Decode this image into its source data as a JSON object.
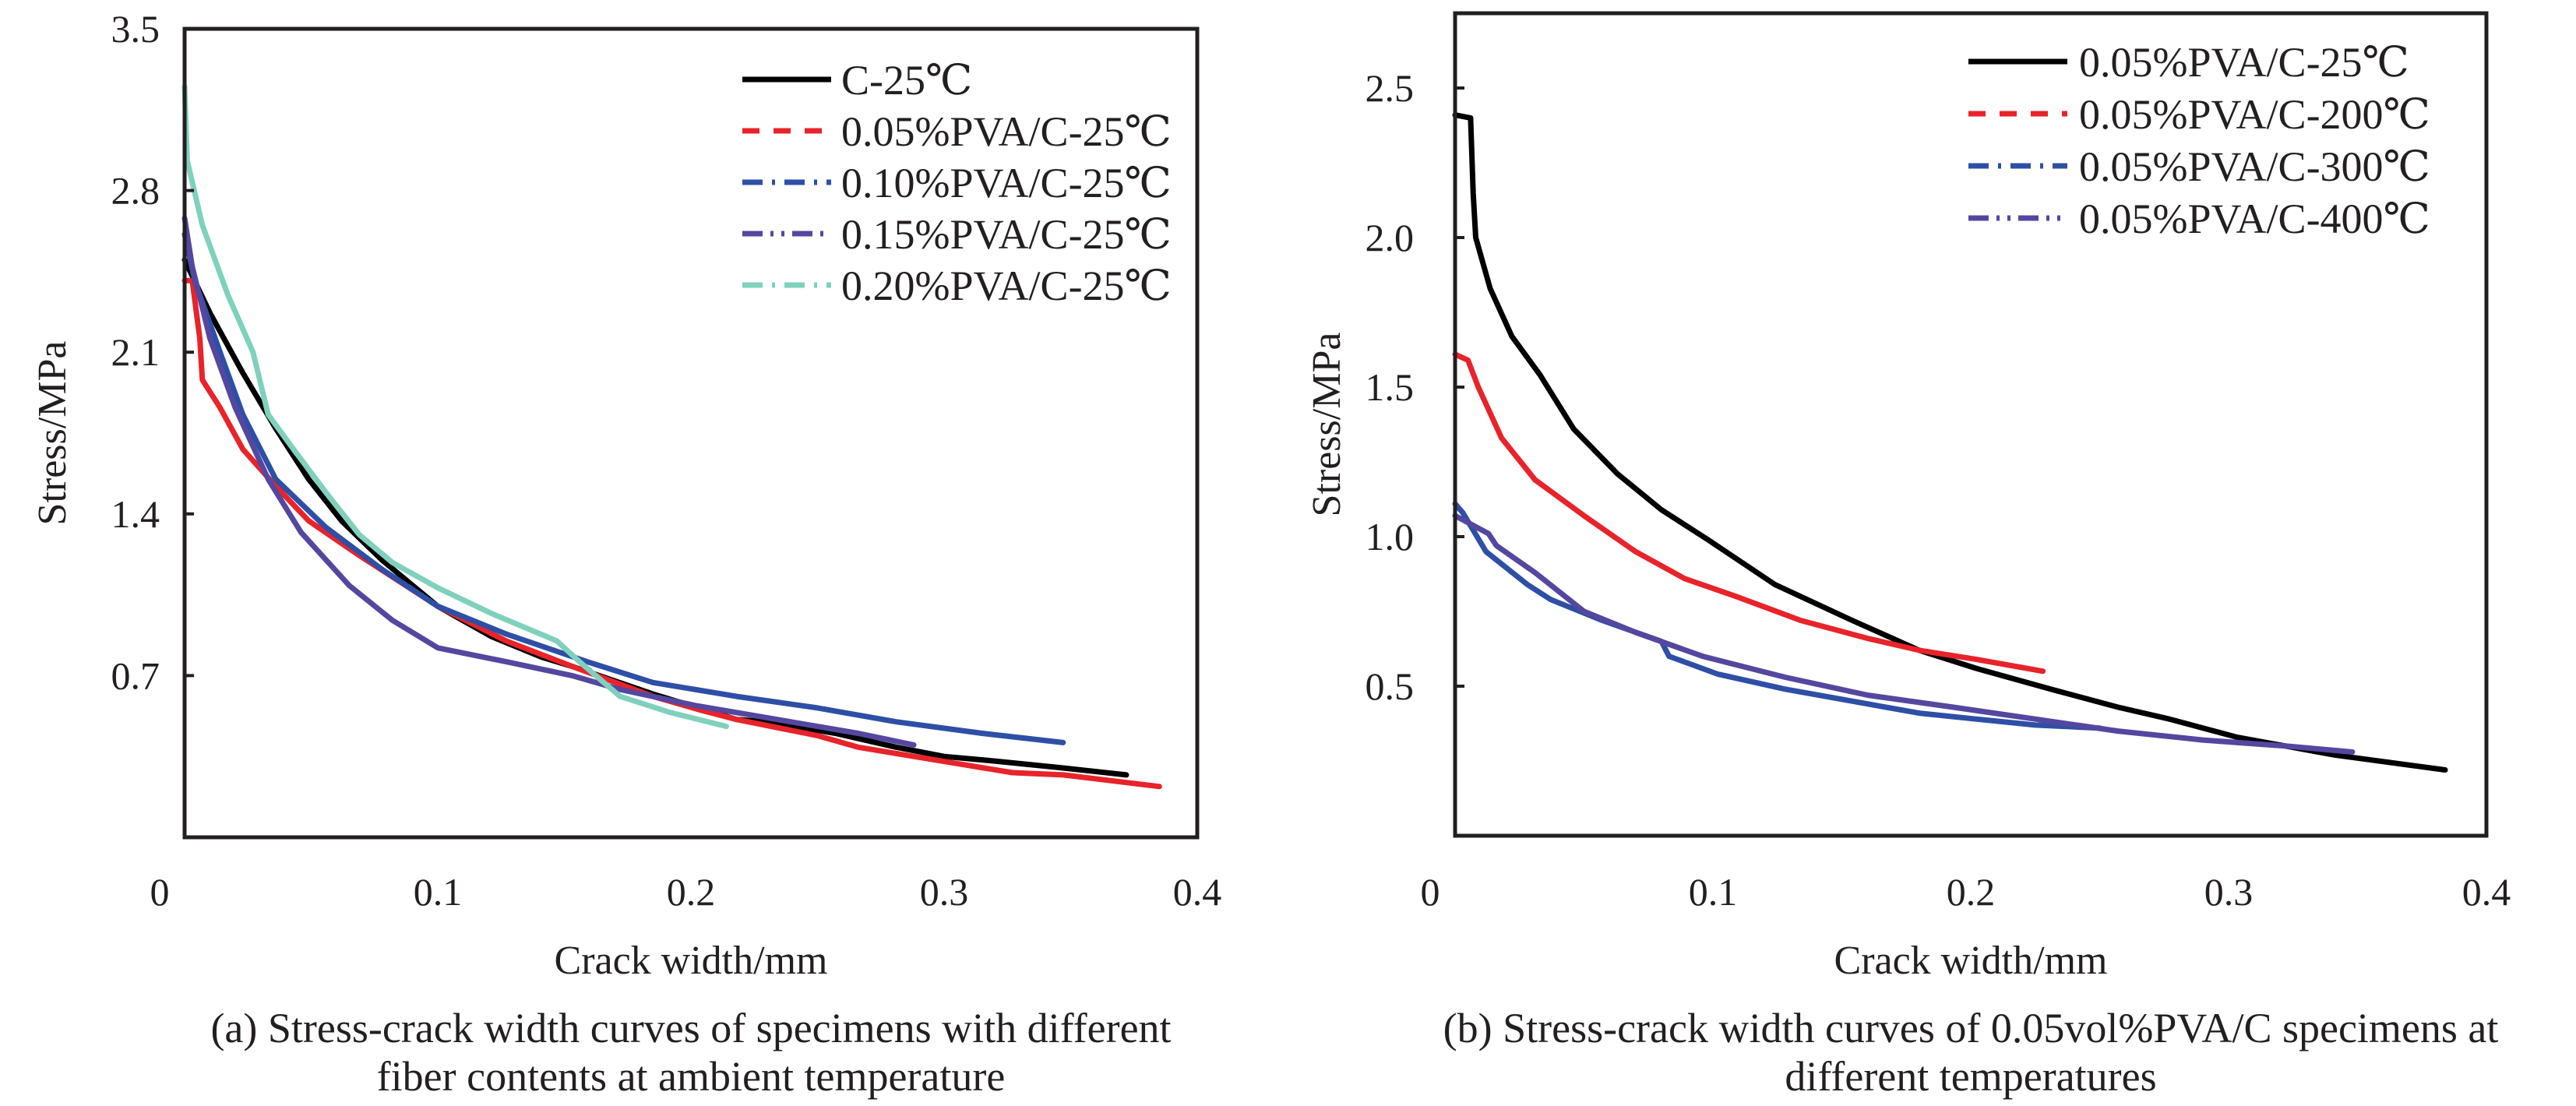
{
  "chart_data": [
    {
      "id": "a",
      "type": "line",
      "title": "",
      "caption": [
        "(a) Stress-crack width curves of specimens with different",
        "fiber contents at ambient temperature"
      ],
      "xlabel": "Crack width/mm",
      "ylabel": "Stress/MPa",
      "xlim": [
        0,
        0.4
      ],
      "ylim": [
        0,
        3.5
      ],
      "xticks": [
        0,
        0.1,
        0.2,
        0.3,
        0.4
      ],
      "xtick_labels": [
        "0",
        "0.1",
        "0.2",
        "0.3",
        "0.4"
      ],
      "yticks": [
        0.7,
        1.4,
        2.1,
        2.8,
        3.5
      ],
      "ytick_labels": [
        "0.7",
        "1.4",
        "2.1",
        "2.8",
        "3.5"
      ],
      "grid": false,
      "legend_position": "top-right",
      "series": [
        {
          "name": "C-25℃",
          "color": "#000000",
          "dash": "solid",
          "points": [
            [
              0,
              2.5
            ],
            [
              0.01,
              2.27
            ],
            [
              0.023,
              2.01
            ],
            [
              0.036,
              1.77
            ],
            [
              0.049,
              1.55
            ],
            [
              0.062,
              1.37
            ],
            [
              0.078,
              1.2
            ],
            [
              0.1,
              1.0
            ],
            [
              0.121,
              0.87
            ],
            [
              0.141,
              0.78
            ],
            [
              0.153,
              0.74
            ],
            [
              0.185,
              0.62
            ],
            [
              0.218,
              0.51
            ],
            [
              0.23,
              0.5
            ],
            [
              0.257,
              0.45
            ],
            [
              0.281,
              0.39
            ],
            [
              0.3,
              0.35
            ],
            [
              0.32,
              0.33
            ],
            [
              0.347,
              0.3
            ],
            [
              0.372,
              0.27
            ]
          ]
        },
        {
          "name": "0.05%PVA/C-25℃",
          "color": "#e8232a",
          "dash": "dash",
          "points": [
            [
              0,
              2.41
            ],
            [
              0.003,
              2.41
            ],
            [
              0.006,
              2.16
            ],
            [
              0.007,
              1.98
            ],
            [
              0.014,
              1.86
            ],
            [
              0.023,
              1.68
            ],
            [
              0.036,
              1.52
            ],
            [
              0.049,
              1.37
            ],
            [
              0.069,
              1.22
            ],
            [
              0.1,
              1.0
            ],
            [
              0.127,
              0.85
            ],
            [
              0.153,
              0.74
            ],
            [
              0.185,
              0.61
            ],
            [
              0.204,
              0.55
            ],
            [
              0.218,
              0.51
            ],
            [
              0.25,
              0.44
            ],
            [
              0.266,
              0.39
            ],
            [
              0.299,
              0.33
            ],
            [
              0.327,
              0.28
            ],
            [
              0.347,
              0.27
            ],
            [
              0.385,
              0.22
            ]
          ]
        },
        {
          "name": "0.10%PVA/C-25℃",
          "color": "#2e4fa6",
          "dash": "dashdot",
          "points": [
            [
              0,
              2.61
            ],
            [
              0.004,
              2.41
            ],
            [
              0.014,
              2.1
            ],
            [
              0.023,
              1.83
            ],
            [
              0.036,
              1.55
            ],
            [
              0.056,
              1.34
            ],
            [
              0.078,
              1.16
            ],
            [
              0.1,
              1.0
            ],
            [
              0.127,
              0.88
            ],
            [
              0.159,
              0.76
            ],
            [
              0.185,
              0.67
            ],
            [
              0.218,
              0.61
            ],
            [
              0.25,
              0.56
            ],
            [
              0.281,
              0.5
            ],
            [
              0.315,
              0.45
            ],
            [
              0.347,
              0.41
            ]
          ]
        },
        {
          "name": "0.15%PVA/C-25℃",
          "color": "#5447a0",
          "dash": "dashdotdot",
          "points": [
            [
              0,
              2.68
            ],
            [
              0.003,
              2.47
            ],
            [
              0.01,
              2.16
            ],
            [
              0.02,
              1.86
            ],
            [
              0.033,
              1.55
            ],
            [
              0.046,
              1.32
            ],
            [
              0.065,
              1.09
            ],
            [
              0.082,
              0.94
            ],
            [
              0.1,
              0.82
            ],
            [
              0.127,
              0.76
            ],
            [
              0.153,
              0.7
            ],
            [
              0.172,
              0.64
            ],
            [
              0.202,
              0.57
            ],
            [
              0.234,
              0.51
            ],
            [
              0.266,
              0.45
            ],
            [
              0.288,
              0.4
            ]
          ]
        },
        {
          "name": "0.20%PVA/C-25℃",
          "color": "#7fd1bd",
          "dash": "dashdot",
          "points": [
            [
              0,
              3.25
            ],
            [
              0.001,
              2.93
            ],
            [
              0.007,
              2.65
            ],
            [
              0.017,
              2.35
            ],
            [
              0.027,
              2.1
            ],
            [
              0.033,
              1.83
            ],
            [
              0.043,
              1.68
            ],
            [
              0.056,
              1.49
            ],
            [
              0.069,
              1.31
            ],
            [
              0.082,
              1.19
            ],
            [
              0.1,
              1.08
            ],
            [
              0.121,
              0.97
            ],
            [
              0.147,
              0.85
            ],
            [
              0.156,
              0.76
            ],
            [
              0.172,
              0.61
            ],
            [
              0.192,
              0.54
            ],
            [
              0.214,
              0.48
            ]
          ]
        }
      ]
    },
    {
      "id": "b",
      "type": "line",
      "title": "",
      "caption": [
        "(b) Stress-crack width curves of 0.05vol%PVA/C specimens at",
        "different temperatures"
      ],
      "xlabel": "Crack width/mm",
      "ylabel": "Stress/MPa",
      "xlim": [
        0,
        0.4
      ],
      "ylim": [
        0,
        2.75
      ],
      "xticks": [
        0,
        0.1,
        0.2,
        0.3,
        0.4
      ],
      "xtick_labels": [
        "0",
        "0.1",
        "0.2",
        "0.3",
        "0.4"
      ],
      "yticks": [
        0.5,
        1.0,
        1.5,
        2.0,
        2.5
      ],
      "ytick_labels": [
        "0.5",
        "1.0",
        "1.5",
        "2.0",
        "2.5"
      ],
      "grid": false,
      "legend_position": "top-right",
      "series": [
        {
          "name": "0.05%PVA/C-25℃",
          "color": "#000000",
          "dash": "solid",
          "points": [
            [
              0,
              2.41
            ],
            [
              0.006,
              2.4
            ],
            [
              0.007,
              2.15
            ],
            [
              0.008,
              2.0
            ],
            [
              0.0136,
              1.83
            ],
            [
              0.022,
              1.67
            ],
            [
              0.033,
              1.54
            ],
            [
              0.046,
              1.36
            ],
            [
              0.063,
              1.21
            ],
            [
              0.08,
              1.09
            ],
            [
              0.098,
              0.99
            ],
            [
              0.124,
              0.84
            ],
            [
              0.154,
              0.72
            ],
            [
              0.18,
              0.62
            ],
            [
              0.202,
              0.56
            ],
            [
              0.231,
              0.49
            ],
            [
              0.257,
              0.43
            ],
            [
              0.277,
              0.39
            ],
            [
              0.303,
              0.33
            ],
            [
              0.341,
              0.27
            ],
            [
              0.384,
              0.22
            ]
          ]
        },
        {
          "name": "0.05%PVA/C-200℃",
          "color": "#e8232a",
          "dash": "dash",
          "points": [
            [
              0,
              1.61
            ],
            [
              0.005,
              1.59
            ],
            [
              0.009,
              1.5
            ],
            [
              0.018,
              1.33
            ],
            [
              0.031,
              1.19
            ],
            [
              0.05,
              1.07
            ],
            [
              0.07,
              0.95
            ],
            [
              0.089,
              0.86
            ],
            [
              0.109,
              0.8
            ],
            [
              0.134,
              0.72
            ],
            [
              0.16,
              0.66
            ],
            [
              0.18,
              0.62
            ],
            [
              0.202,
              0.59
            ],
            [
              0.228,
              0.55
            ]
          ]
        },
        {
          "name": "0.05%PVA/C-300℃",
          "color": "#2e4fa6",
          "dash": "dashdot",
          "points": [
            [
              0,
              1.11
            ],
            [
              0.003,
              1.08
            ],
            [
              0.012,
              0.95
            ],
            [
              0.028,
              0.84
            ],
            [
              0.037,
              0.79
            ],
            [
              0.057,
              0.72
            ],
            [
              0.08,
              0.65
            ],
            [
              0.083,
              0.6
            ],
            [
              0.102,
              0.54
            ],
            [
              0.128,
              0.49
            ],
            [
              0.154,
              0.45
            ],
            [
              0.18,
              0.41
            ],
            [
              0.202,
              0.39
            ],
            [
              0.225,
              0.37
            ],
            [
              0.25,
              0.36
            ]
          ]
        },
        {
          "name": "0.05%PVA/C-400℃",
          "color": "#5447a0",
          "dash": "dashdotdot",
          "points": [
            [
              0,
              1.07
            ],
            [
              0.013,
              1.01
            ],
            [
              0.016,
              0.97
            ],
            [
              0.031,
              0.88
            ],
            [
              0.05,
              0.75
            ],
            [
              0.07,
              0.68
            ],
            [
              0.096,
              0.6
            ],
            [
              0.128,
              0.53
            ],
            [
              0.16,
              0.47
            ],
            [
              0.193,
              0.43
            ],
            [
              0.225,
              0.39
            ],
            [
              0.257,
              0.35
            ],
            [
              0.29,
              0.32
            ],
            [
              0.322,
              0.3
            ],
            [
              0.348,
              0.28
            ]
          ]
        }
      ]
    }
  ]
}
